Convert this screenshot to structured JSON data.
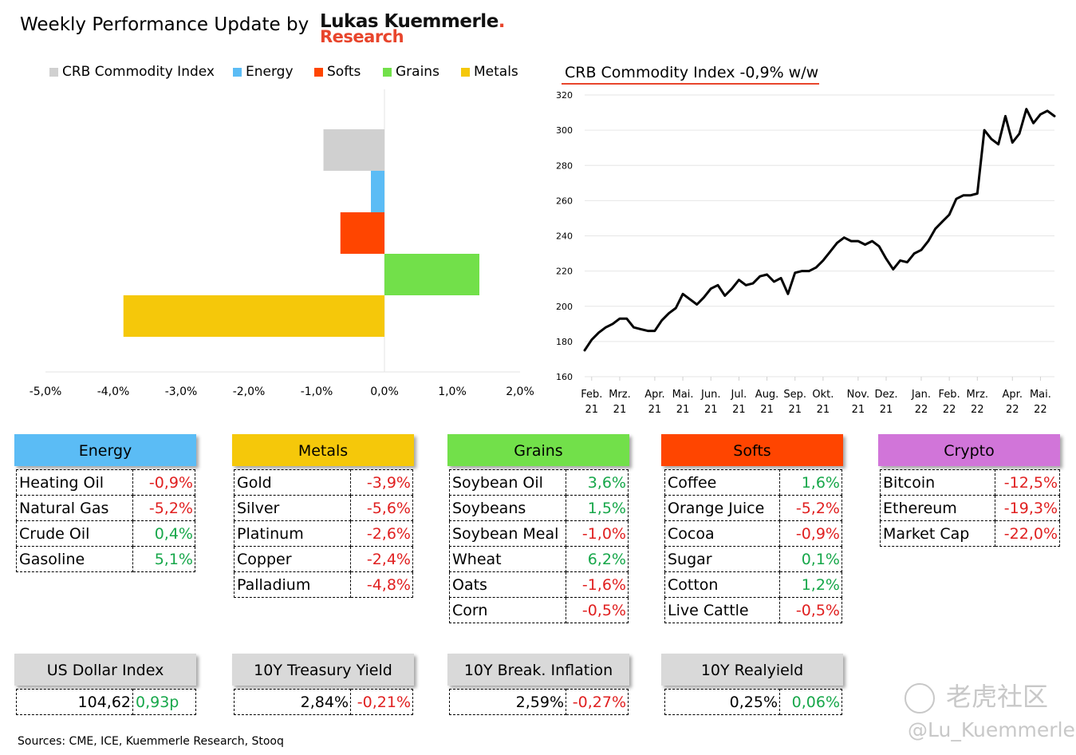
{
  "header": {
    "title": "Weekly Performance Update by",
    "brand_line1": "Lukas Kuemmerle",
    "brand_dot": ".",
    "brand_line2": "Research"
  },
  "legend": [
    {
      "label": "CRB Commodity Index",
      "color": "#d0d0d0"
    },
    {
      "label": "Energy",
      "color": "#5bbcf5"
    },
    {
      "label": "Softs",
      "color": "#ff4500"
    },
    {
      "label": "Grains",
      "color": "#72e04a"
    },
    {
      "label": "Metals",
      "color": "#f5c80a"
    }
  ],
  "line_title": "CRB Commodity Index -0,9% w/w",
  "chart_data": [
    {
      "type": "bar",
      "orientation": "horizontal",
      "categories": [
        "CRB Commodity Index",
        "Energy",
        "Softs",
        "Grains",
        "Metals"
      ],
      "values": [
        -0.9,
        -0.2,
        -0.65,
        1.4,
        -3.85
      ],
      "colors": [
        "#d0d0d0",
        "#5bbcf5",
        "#ff4500",
        "#72e04a",
        "#f5c80a"
      ],
      "xlim": [
        -5.0,
        2.0
      ],
      "xticks": [
        -5,
        -4,
        -3,
        -2,
        -1,
        0,
        1,
        2
      ],
      "xtick_labels": [
        "-5,0%",
        "-4,0%",
        "-3,0%",
        "-2,0%",
        "-1,0%",
        "0,0%",
        "1,0%",
        "2,0%"
      ],
      "grid": false
    },
    {
      "type": "line",
      "title": "CRB Commodity Index -0,9% w/w",
      "ylim": [
        160,
        320
      ],
      "yticks": [
        160,
        180,
        200,
        220,
        240,
        260,
        280,
        300,
        320
      ],
      "grid": true,
      "x_labels": [
        {
          "line1": "Feb.",
          "line2": "21"
        },
        {
          "line1": "Mrz.",
          "line2": "21"
        },
        {
          "line1": "Apr.",
          "line2": "21"
        },
        {
          "line1": "Mai.",
          "line2": "21"
        },
        {
          "line1": "Jun.",
          "line2": "21"
        },
        {
          "line1": "Jul.",
          "line2": "21"
        },
        {
          "line1": "Aug.",
          "line2": "21"
        },
        {
          "line1": "Sep.",
          "line2": "21"
        },
        {
          "line1": "Okt.",
          "line2": "21"
        },
        {
          "line1": "Nov.",
          "line2": "21"
        },
        {
          "line1": "Dez.",
          "line2": "21"
        },
        {
          "line1": "Jan.",
          "line2": "22"
        },
        {
          "line1": "Feb.",
          "line2": "22"
        },
        {
          "line1": "Mrz.",
          "line2": "22"
        },
        {
          "line1": "Apr.",
          "line2": "22"
        },
        {
          "line1": "Mai.",
          "line2": "22"
        }
      ],
      "x_label_index": [
        1,
        5,
        10,
        14,
        18,
        22,
        26,
        30,
        34,
        39,
        43,
        48,
        52,
        56,
        61,
        65
      ],
      "values": [
        175,
        181,
        185,
        188,
        190,
        193,
        193,
        188,
        187,
        186,
        186,
        192,
        196,
        199,
        207,
        204,
        201,
        205,
        210,
        212,
        206,
        210,
        215,
        212,
        213,
        217,
        218,
        214,
        216,
        207,
        219,
        220,
        220,
        222,
        226,
        231,
        236,
        239,
        237,
        237,
        235,
        237,
        234,
        227,
        221,
        226,
        225,
        230,
        232,
        237,
        244,
        248,
        252,
        261,
        263,
        263,
        264,
        300,
        295,
        292,
        308,
        293,
        298,
        312,
        304,
        309,
        311,
        308
      ]
    }
  ],
  "categories": [
    {
      "name": "Energy",
      "color": "#5bbcf5",
      "rows": [
        {
          "name": "Heating Oil",
          "value": "-0,9%",
          "sign": "neg"
        },
        {
          "name": "Natural Gas",
          "value": "-5,2%",
          "sign": "neg"
        },
        {
          "name": "Crude Oil",
          "value": "0,4%",
          "sign": "pos"
        },
        {
          "name": "Gasoline",
          "value": "5,1%",
          "sign": "pos"
        }
      ]
    },
    {
      "name": "Metals",
      "color": "#f5c80a",
      "rows": [
        {
          "name": "Gold",
          "value": "-3,9%",
          "sign": "neg"
        },
        {
          "name": "Silver",
          "value": "-5,6%",
          "sign": "neg"
        },
        {
          "name": "Platinum",
          "value": "-2,6%",
          "sign": "neg"
        },
        {
          "name": "Copper",
          "value": "-2,4%",
          "sign": "neg"
        },
        {
          "name": "Palladium",
          "value": "-4,8%",
          "sign": "neg"
        }
      ]
    },
    {
      "name": "Grains",
      "color": "#72e04a",
      "rows": [
        {
          "name": "Soybean Oil",
          "value": "3,6%",
          "sign": "pos"
        },
        {
          "name": "Soybeans",
          "value": "1,5%",
          "sign": "pos"
        },
        {
          "name": "Soybean Meal",
          "value": "-1,0%",
          "sign": "neg"
        },
        {
          "name": "Wheat",
          "value": "6,2%",
          "sign": "pos"
        },
        {
          "name": "Oats",
          "value": "-1,6%",
          "sign": "neg"
        },
        {
          "name": "Corn",
          "value": "-0,5%",
          "sign": "neg"
        }
      ]
    },
    {
      "name": "Softs",
      "color": "#ff4500",
      "rows": [
        {
          "name": "Coffee",
          "value": "1,6%",
          "sign": "pos"
        },
        {
          "name": "Orange Juice",
          "value": "-5,2%",
          "sign": "neg"
        },
        {
          "name": "Cocoa",
          "value": "-0,9%",
          "sign": "neg"
        },
        {
          "name": "Sugar",
          "value": "0,1%",
          "sign": "pos"
        },
        {
          "name": "Cotton",
          "value": "1,2%",
          "sign": "pos"
        },
        {
          "name": "Live Cattle",
          "value": "-0,5%",
          "sign": "neg"
        }
      ]
    },
    {
      "name": "Crypto",
      "color": "#d175d9",
      "rows": [
        {
          "name": "Bitcoin",
          "value": "-12,5%",
          "sign": "neg"
        },
        {
          "name": "Ethereum",
          "value": "-19,3%",
          "sign": "neg"
        },
        {
          "name": "Market Cap",
          "value": "-22,0%",
          "sign": "neg"
        }
      ]
    }
  ],
  "indicators": [
    {
      "name": "US Dollar Index",
      "level": "104,62",
      "change": "0,93p",
      "sign": "pos"
    },
    {
      "name": "10Y Treasury Yield",
      "level": "2,84%",
      "change": "-0,21%",
      "sign": "neg"
    },
    {
      "name": "10Y Break. Inflation",
      "level": "2,59%",
      "change": "-0,27%",
      "sign": "neg"
    },
    {
      "name": "10Y Realyield",
      "level": "0,25%",
      "change": "0,06%",
      "sign": "pos"
    }
  ],
  "footer": {
    "sources": "Sources: CME, ICE, Kuemmerle Research, Stooq"
  },
  "watermark": {
    "logo_text": "老虎社区",
    "handle": "@Lu_Kuemmerle"
  }
}
